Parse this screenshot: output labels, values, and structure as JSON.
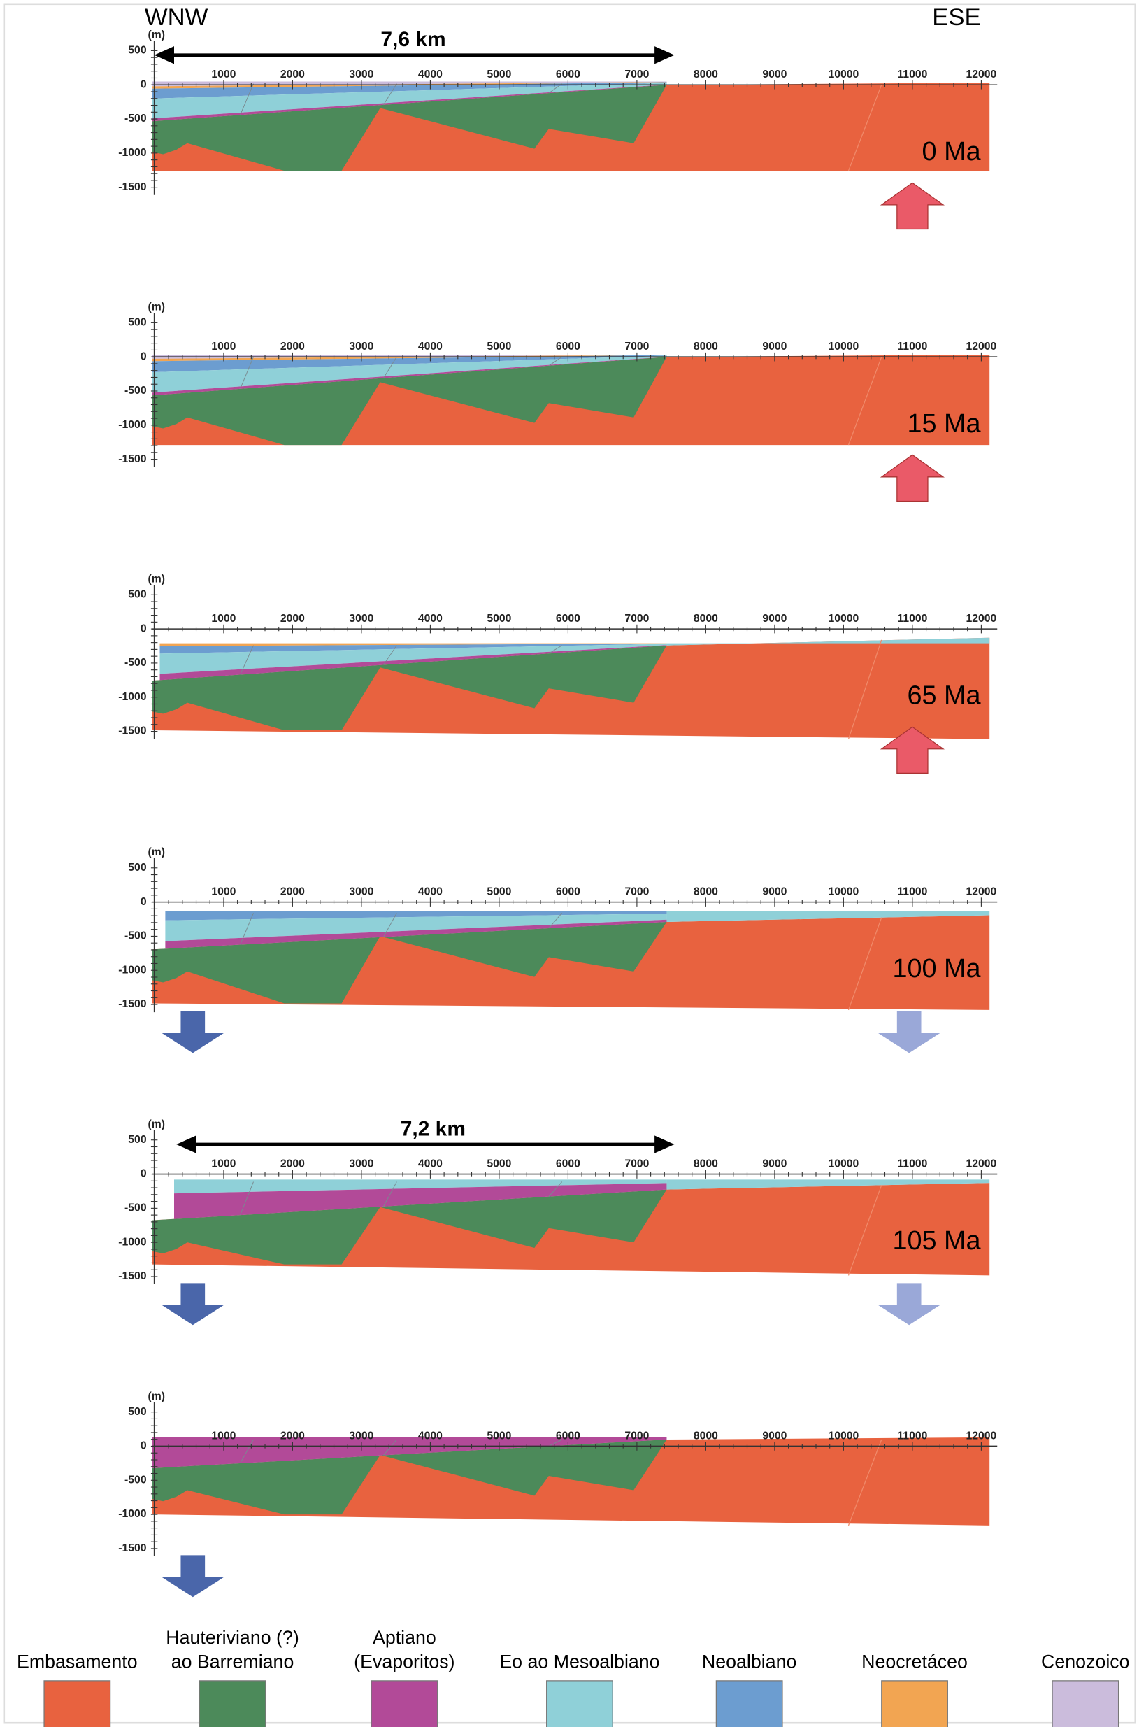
{
  "header": {
    "left": "WNW",
    "right": "ESE"
  },
  "axis": {
    "unit": "(m)",
    "x_ticks": [
      "1000",
      "2000",
      "3000",
      "4000",
      "5000",
      "6000",
      "7000",
      "8000",
      "9000",
      "10000",
      "11000",
      "12000"
    ],
    "y_ticks": [
      "500",
      "0",
      "-500",
      "-1000",
      "-1500"
    ]
  },
  "panels": [
    {
      "age": "0 Ma",
      "distance": "7,6 km"
    },
    {
      "age": "15 Ma"
    },
    {
      "age": "65 Ma"
    },
    {
      "age": "100 Ma"
    },
    {
      "age": "105 Ma",
      "distance": "7,2 km"
    }
  ],
  "legend": [
    {
      "label": [
        "Embasamento"
      ],
      "color": "#e8623f"
    },
    {
      "label": [
        "Hauteriviano (?)",
        "ao Barremiano"
      ],
      "color": "#4c8a5a"
    },
    {
      "label": [
        "Aptiano",
        "(Evaporitos)"
      ],
      "color": "#b24a98"
    },
    {
      "label": [
        "Eo ao Mesoalbiano"
      ],
      "color": "#8fd0d8"
    },
    {
      "label": [
        "Neoalbiano"
      ],
      "color": "#6c9dd0"
    },
    {
      "label": [
        "Neocretáceo"
      ],
      "color": "#f2a552"
    },
    {
      "label": [
        "Cenozoico"
      ],
      "color": "#cbbcdc"
    }
  ]
}
